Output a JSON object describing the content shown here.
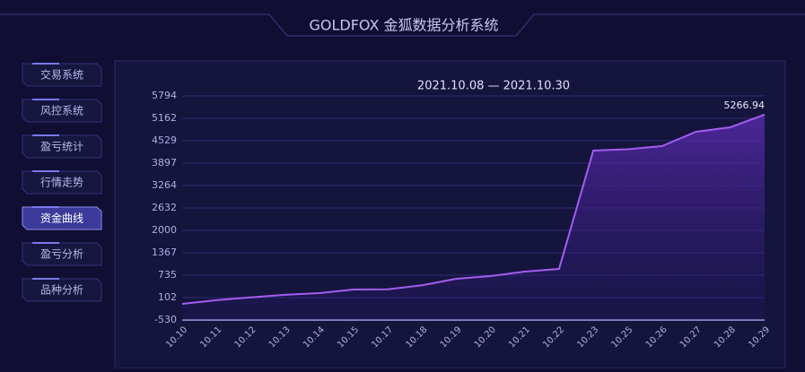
{
  "header": {
    "title": "GOLDFOX 金狐数据分析系统"
  },
  "menu": {
    "items": [
      "交易系统",
      "风控系统",
      "盈亏统计",
      "行情走势",
      "资金曲线",
      "盈亏分析",
      "品种分析"
    ],
    "active": 4
  },
  "chart_data": {
    "type": "area",
    "title": "2021.10.08 — 2021.10.30",
    "categories": [
      "10.10",
      "10.11",
      "10.12",
      "10.13",
      "10.14",
      "10.15",
      "10.17",
      "10.18",
      "10.19",
      "10.20",
      "10.21",
      "10.22",
      "10.23",
      "10.25",
      "10.26",
      "10.27",
      "10.28",
      "10.29"
    ],
    "series": [
      {
        "name": "资金曲线",
        "color": "#a45cf0",
        "values": [
          -75,
          30,
          110,
          180,
          230,
          330,
          335,
          450,
          634,
          710,
          836,
          912,
          4251,
          4290,
          4377,
          4782,
          4909,
          5266.94
        ]
      }
    ],
    "ylim": [
      -530,
      5794
    ],
    "yticks": [
      -530,
      102,
      735,
      1367,
      2000,
      2632,
      3264,
      3897,
      4529,
      5162,
      5794
    ],
    "grid": true
  }
}
